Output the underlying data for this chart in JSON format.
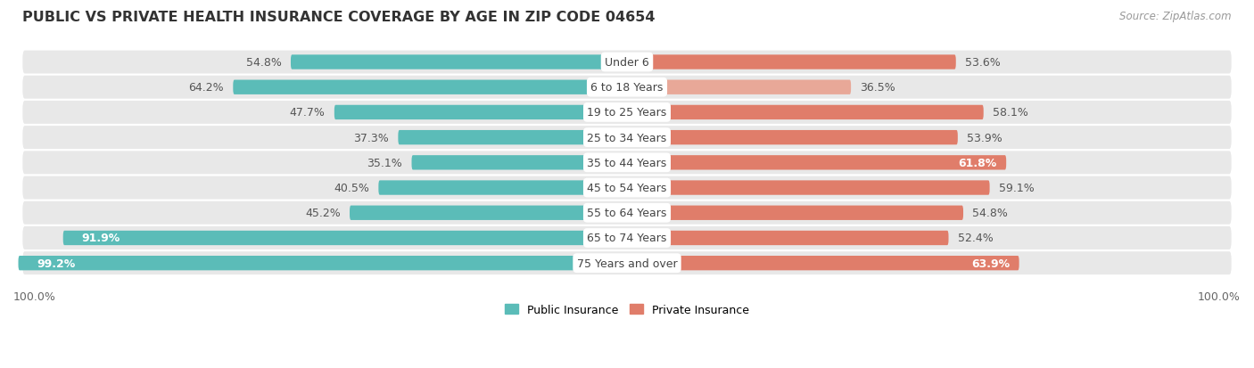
{
  "title": "PUBLIC VS PRIVATE HEALTH INSURANCE COVERAGE BY AGE IN ZIP CODE 04654",
  "source": "Source: ZipAtlas.com",
  "categories": [
    "Under 6",
    "6 to 18 Years",
    "19 to 25 Years",
    "25 to 34 Years",
    "35 to 44 Years",
    "45 to 54 Years",
    "55 to 64 Years",
    "65 to 74 Years",
    "75 Years and over"
  ],
  "public_values": [
    54.8,
    64.2,
    47.7,
    37.3,
    35.1,
    40.5,
    45.2,
    91.9,
    99.2
  ],
  "private_values": [
    53.6,
    36.5,
    58.1,
    53.9,
    61.8,
    59.1,
    54.8,
    52.4,
    63.9
  ],
  "public_color": "#5bbcb8",
  "private_color": "#e07d6a",
  "private_color_light": "#e8a898",
  "row_bg_color": "#e8e8e8",
  "bar_height": 0.58,
  "label_fontsize": 9.0,
  "title_fontsize": 11.5,
  "source_fontsize": 8.5,
  "legend_fontsize": 9,
  "bottom_label": "100.0%",
  "max_value": 100.0,
  "figsize": [
    14.06,
    4.14
  ],
  "dpi": 100,
  "white_label_threshold_pub": 80.0,
  "white_label_threshold_priv": 61.0
}
